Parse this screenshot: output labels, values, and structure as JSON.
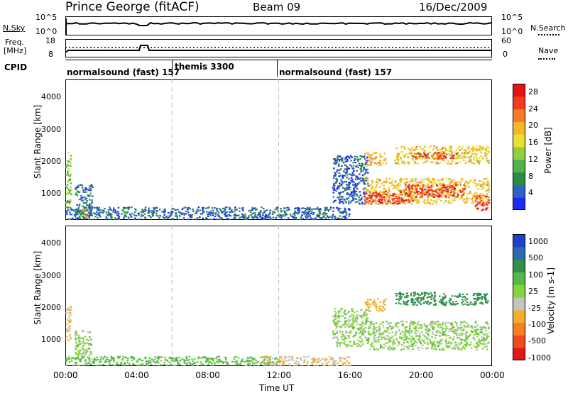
{
  "header": {
    "station": "Prince George (fitACF)",
    "beam": "Beam 09",
    "date": "16/Dec/2009"
  },
  "sky_panel": {
    "left_label": "N.Sky",
    "left_ticks": [
      "10^5",
      "10^0"
    ],
    "right_ticks": [
      "10^5",
      "10^0"
    ],
    "right_label": "N.Search"
  },
  "freq_panel": {
    "left_label_1": "Freq.",
    "left_label_2": "[MHz]",
    "left_ticks": [
      "18",
      "8"
    ],
    "right_ticks": [
      "60",
      "0"
    ],
    "right_label": "Nave"
  },
  "cpid": {
    "label": "CPID",
    "segments": [
      {
        "name": "normalsound (fast) 157"
      },
      {
        "name": "themis 3300"
      },
      {
        "name": "normalsound (fast) 157"
      }
    ]
  },
  "colors": {
    "power_scale": [
      "#1d2cf0",
      "#2f62c4",
      "#2c8b43",
      "#4fb34a",
      "#8fd03f",
      "#e7e22d",
      "#f7b52b",
      "#f77a26",
      "#f33a22",
      "#e41414"
    ],
    "velocity_scale": [
      "#2140c8",
      "#2b6ab0",
      "#2f8f4b",
      "#55b848",
      "#86d33f",
      "#c4c4c4",
      "#f5ad30",
      "#f48021",
      "#f04a20",
      "#e51717"
    ]
  },
  "chart_data": [
    {
      "type": "heatmap",
      "title": "Power",
      "ylabel": "Slant Range [km]",
      "xlabel": "Time UT",
      "x_ticks": [
        "00:00",
        "04:00",
        "08:00",
        "12:00",
        "16:00",
        "20:00",
        "00:00"
      ],
      "x_range_hours": [
        0,
        24
      ],
      "y_ticks": [
        1000,
        2000,
        3000,
        4000
      ],
      "ylim": [
        180,
        4560
      ],
      "colorbar": {
        "label": "Power [dB]",
        "ticks": [
          4,
          8,
          12,
          16,
          20,
          24,
          28
        ],
        "range": [
          0,
          30
        ]
      },
      "regions": [
        {
          "t0": 0.0,
          "t1": 0.3,
          "r0": 600,
          "r1": 2300,
          "value": 12
        },
        {
          "t0": 0.5,
          "t1": 1.5,
          "r0": 300,
          "r1": 1300,
          "value": 6
        },
        {
          "t0": 0.9,
          "t1": 1.3,
          "r0": 250,
          "r1": 550,
          "value": 20
        },
        {
          "t0": 0.0,
          "t1": 16.0,
          "r0": 200,
          "r1": 600,
          "value": 5
        },
        {
          "t0": 15.0,
          "t1": 17.0,
          "r0": 700,
          "r1": 2200,
          "value": 4
        },
        {
          "t0": 16.8,
          "t1": 23.8,
          "r0": 700,
          "r1": 1500,
          "value": 18
        },
        {
          "t0": 16.8,
          "t1": 19.5,
          "r0": 700,
          "r1": 1100,
          "value": 26
        },
        {
          "t0": 19.0,
          "t1": 22.5,
          "r0": 900,
          "r1": 1300,
          "value": 26
        },
        {
          "t0": 16.8,
          "t1": 18.0,
          "r0": 1900,
          "r1": 2300,
          "value": 20
        },
        {
          "t0": 18.5,
          "t1": 23.8,
          "r0": 1950,
          "r1": 2500,
          "value": 18
        },
        {
          "t0": 19.5,
          "t1": 22.0,
          "r0": 2100,
          "r1": 2300,
          "value": 26
        },
        {
          "t0": 23.0,
          "t1": 23.8,
          "r0": 500,
          "r1": 1000,
          "value": 26
        }
      ]
    },
    {
      "type": "heatmap",
      "title": "Velocity",
      "ylabel": "Slant Range [km]",
      "xlabel": "Time UT",
      "x_ticks": [
        "00:00",
        "04:00",
        "08:00",
        "12:00",
        "16:00",
        "20:00",
        "00:00"
      ],
      "x_range_hours": [
        0,
        24
      ],
      "y_ticks": [
        1000,
        2000,
        3000,
        4000
      ],
      "ylim": [
        180,
        4560
      ],
      "colorbar": {
        "label": "Velocity [m s-1]",
        "ticks": [
          1000,
          500,
          100,
          25,
          -25,
          -100,
          -500,
          -1000
        ]
      },
      "regions": [
        {
          "t0": 0.0,
          "t1": 0.3,
          "r0": 900,
          "r1": 2100,
          "value": -100
        },
        {
          "t0": 0.5,
          "t1": 1.5,
          "r0": 400,
          "r1": 1300,
          "value": 0
        },
        {
          "t0": 0.0,
          "t1": 12.0,
          "r0": 200,
          "r1": 500,
          "value": 50
        },
        {
          "t0": 11.0,
          "t1": 16.0,
          "r0": 200,
          "r1": 500,
          "value": -100
        },
        {
          "t0": 15.0,
          "t1": 17.0,
          "r0": 800,
          "r1": 2000,
          "value": 0
        },
        {
          "t0": 17.0,
          "t1": 23.8,
          "r0": 700,
          "r1": 1600,
          "value": 0
        },
        {
          "t0": 16.8,
          "t1": 18.0,
          "r0": 1900,
          "r1": 2300,
          "value": -300
        },
        {
          "t0": 18.5,
          "t1": 23.8,
          "r0": 2100,
          "r1": 2500,
          "value": 200
        }
      ]
    }
  ]
}
